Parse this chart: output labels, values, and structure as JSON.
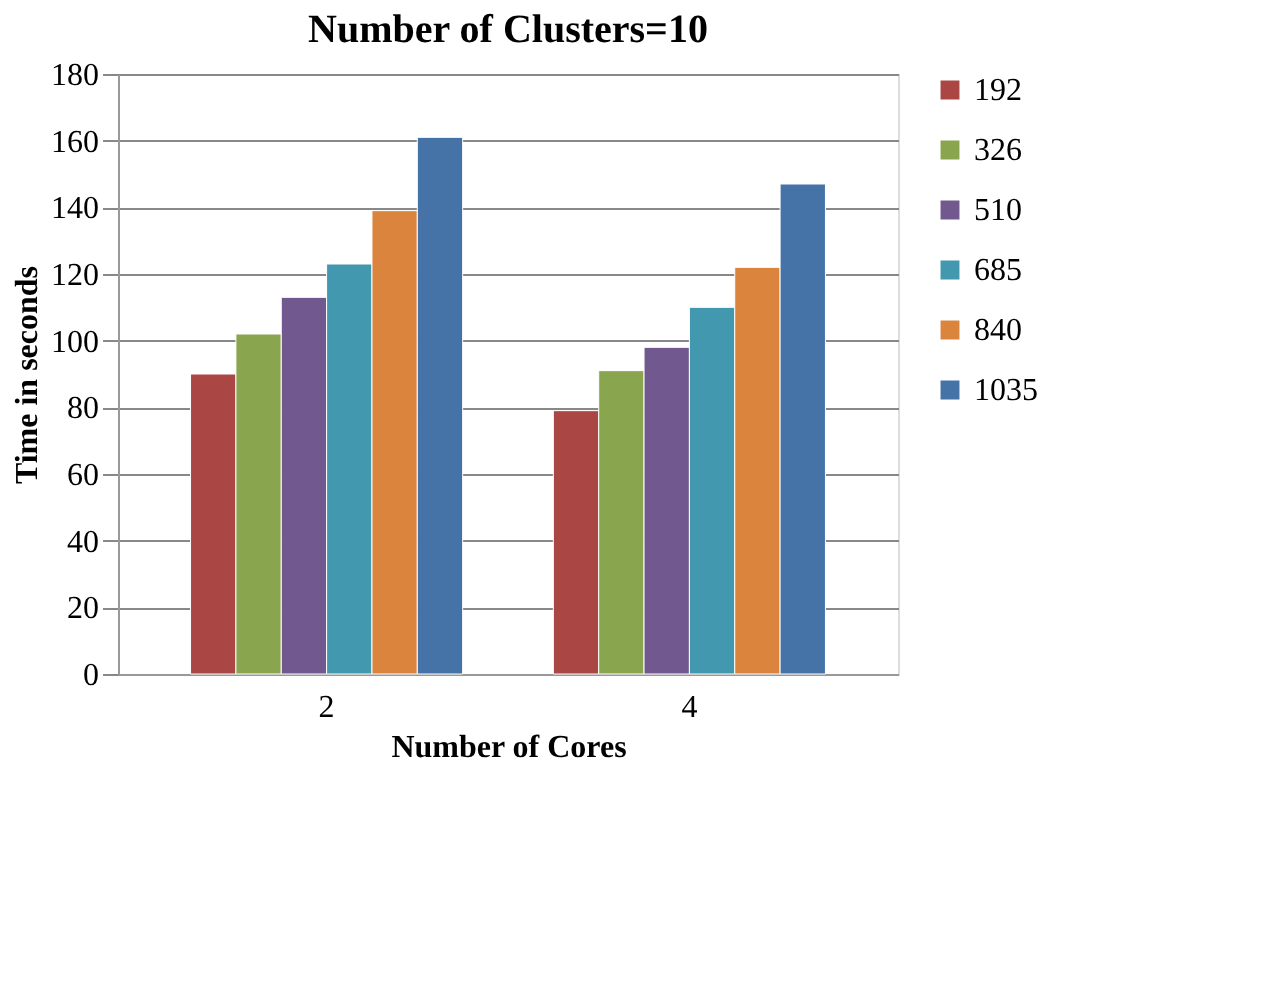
{
  "chart_data": {
    "type": "bar",
    "title": "Number of Clusters=10",
    "xlabel": "Number of Cores",
    "ylabel": "Time in seconds",
    "categories": [
      "2",
      "4"
    ],
    "series": [
      {
        "name": "192",
        "color": "#aa4643",
        "values": [
          90,
          79
        ]
      },
      {
        "name": "326",
        "color": "#89a54e",
        "values": [
          102,
          91
        ]
      },
      {
        "name": "510",
        "color": "#71588f",
        "values": [
          113,
          98
        ]
      },
      {
        "name": "685",
        "color": "#4198af",
        "values": [
          123,
          110
        ]
      },
      {
        "name": "840",
        "color": "#db843d",
        "values": [
          139,
          122
        ]
      },
      {
        "name": "1035",
        "color": "#4572a7",
        "values": [
          161,
          147
        ]
      }
    ],
    "ylim": [
      0,
      180
    ],
    "yticks": [
      0,
      20,
      40,
      60,
      80,
      100,
      120,
      140,
      160,
      180
    ],
    "grid": "y",
    "legend": "right"
  }
}
